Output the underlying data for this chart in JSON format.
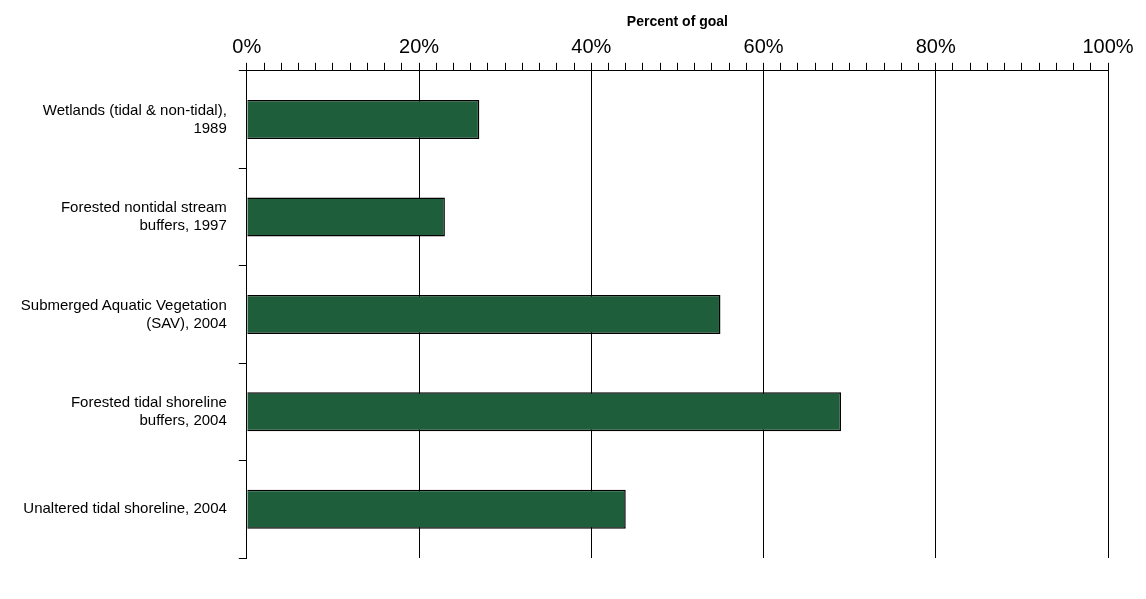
{
  "chart_data": {
    "type": "bar",
    "orientation": "horizontal",
    "xlabel": "Percent of goal",
    "categories": [
      "Wetlands (tidal & non-tidal), 1989",
      "Forested nontidal stream buffers, 1997",
      "Submerged Aquatic Vegetation (SAV), 2004",
      "Forested tidal shoreline buffers, 2004",
      "Unaltered tidal shoreline, 2004"
    ],
    "values": [
      27,
      23,
      55,
      69,
      44
    ],
    "color": "#1e5e3a",
    "xlim": [
      0,
      100
    ],
    "xticks": [
      {
        "value": 0,
        "label": "0%"
      },
      {
        "value": 2,
        "label": null
      },
      {
        "value": 4,
        "label": null
      },
      {
        "value": 6,
        "label": null
      },
      {
        "value": 8,
        "label": null
      },
      {
        "value": 10,
        "label": null
      },
      {
        "value": 12,
        "label": null
      },
      {
        "value": 14,
        "label": null
      },
      {
        "value": 16,
        "label": null
      },
      {
        "value": 18,
        "label": null
      },
      {
        "value": 20,
        "label": "20%"
      },
      {
        "value": 22,
        "label": null
      },
      {
        "value": 24,
        "label": null
      },
      {
        "value": 26,
        "label": null
      },
      {
        "value": 28,
        "label": null
      },
      {
        "value": 30,
        "label": null
      },
      {
        "value": 32,
        "label": null
      },
      {
        "value": 34,
        "label": null
      },
      {
        "value": 36,
        "label": null
      },
      {
        "value": 38,
        "label": null
      },
      {
        "value": 40,
        "label": "40%"
      },
      {
        "value": 42,
        "label": null
      },
      {
        "value": 44,
        "label": null
      },
      {
        "value": 46,
        "label": null
      },
      {
        "value": 48,
        "label": null
      },
      {
        "value": 50,
        "label": null
      },
      {
        "value": 52,
        "label": null
      },
      {
        "value": 54,
        "label": null
      },
      {
        "value": 56,
        "label": null
      },
      {
        "value": 58,
        "label": null
      },
      {
        "value": 60,
        "label": "60%"
      },
      {
        "value": 62,
        "label": null
      },
      {
        "value": 64,
        "label": null
      },
      {
        "value": 66,
        "label": null
      },
      {
        "value": 68,
        "label": null
      },
      {
        "value": 70,
        "label": null
      },
      {
        "value": 72,
        "label": null
      },
      {
        "value": 74,
        "label": null
      },
      {
        "value": 76,
        "label": null
      },
      {
        "value": 78,
        "label": null
      },
      {
        "value": 80,
        "label": "80%"
      },
      {
        "value": 82,
        "label": null
      },
      {
        "value": 84,
        "label": null
      },
      {
        "value": 86,
        "label": null
      },
      {
        "value": 88,
        "label": null
      },
      {
        "value": 90,
        "label": null
      },
      {
        "value": 92,
        "label": null
      },
      {
        "value": 94,
        "label": null
      },
      {
        "value": 96,
        "label": null
      },
      {
        "value": 98,
        "label": null
      },
      {
        "value": 100,
        "label": "100%"
      }
    ],
    "grid": "x",
    "legend": false
  }
}
